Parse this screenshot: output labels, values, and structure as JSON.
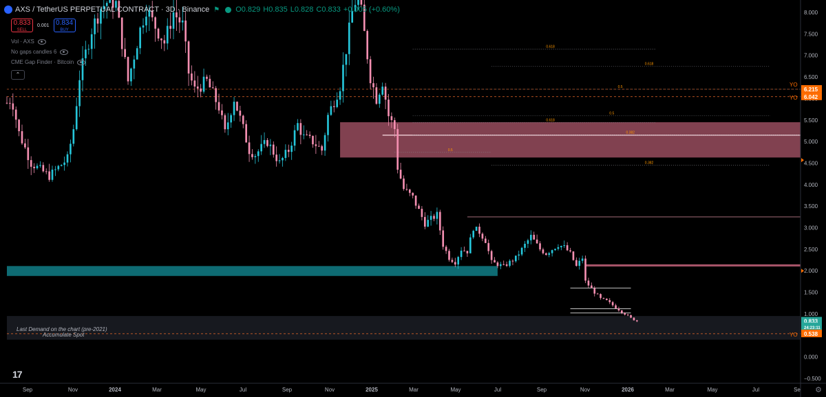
{
  "header": {
    "symbol": "AXS / TetherUS PERPETUAL CONTRACT · 3D · Binance",
    "open": "O0.829",
    "high": "H0.835",
    "low": "L0.828",
    "close": "C0.833",
    "change": "+0.005 (+0.60%)"
  },
  "trade": {
    "sell_price": "0.833",
    "sell_label": "SELL",
    "spread": "0.001",
    "buy_price": "0.834",
    "buy_label": "BUY"
  },
  "indicators": [
    "Vol · AXS",
    "No gaps candles 6",
    "CME Gap Finder · Bitcoin"
  ],
  "colors": {
    "background": "#000000",
    "up": "#26c6da",
    "down": "#f48fb1",
    "demand_zone": "#0e6b73",
    "supply_zone": "#b85c72",
    "price_tag": "#26a69a",
    "yo_tag": "#ff6d00",
    "fib": "#ff9800"
  },
  "chart_data": {
    "type": "candlestick",
    "ylim": [
      -0.5,
      8.0
    ],
    "y_ticks": [
      "8.000",
      "7.500",
      "7.000",
      "6.500",
      "6.000",
      "5.500",
      "5.000",
      "4.500",
      "4.000",
      "3.500",
      "3.000",
      "2.500",
      "2.000",
      "1.500",
      "1.000",
      "0.000",
      "−0.500"
    ],
    "x_ticks": [
      "Sep",
      "Nov",
      "2024",
      "Mar",
      "May",
      "Jul",
      "Sep",
      "Nov",
      "2025",
      "Mar",
      "May",
      "Jul",
      "Sep",
      "Nov",
      "2026",
      "Mar",
      "May",
      "Jul",
      "Se"
    ],
    "price_path": [
      [
        0,
        5.9
      ],
      [
        0.8,
        6.0
      ],
      [
        2,
        5.2
      ],
      [
        4,
        4.5
      ],
      [
        7,
        4.2
      ],
      [
        10,
        4.6
      ],
      [
        11,
        5.3
      ],
      [
        12,
        6.5
      ],
      [
        14,
        7.6
      ],
      [
        15.5,
        8.1
      ],
      [
        17,
        8.3
      ],
      [
        18,
        8.2
      ],
      [
        19,
        7.3
      ],
      [
        20,
        6.4
      ],
      [
        21,
        7.0
      ],
      [
        22,
        7.6
      ],
      [
        23,
        8.1
      ],
      [
        24,
        7.8
      ],
      [
        26,
        7.3
      ],
      [
        27.5,
        8.0
      ],
      [
        29,
        7.7
      ],
      [
        30,
        6.6
      ],
      [
        31,
        6.2
      ],
      [
        33,
        6.4
      ],
      [
        35,
        5.8
      ],
      [
        36,
        5.2
      ],
      [
        37.5,
        6.0
      ],
      [
        39,
        5.3
      ],
      [
        40,
        4.8
      ],
      [
        41,
        4.7
      ],
      [
        43,
        5.0
      ],
      [
        45,
        4.5
      ],
      [
        46.5,
        4.8
      ],
      [
        48,
        5.4
      ],
      [
        49,
        5.1
      ],
      [
        50.5,
        5.0
      ],
      [
        52,
        4.8
      ],
      [
        53,
        5.6
      ],
      [
        55,
        6.3
      ],
      [
        57,
        8.0
      ],
      [
        58,
        8.5
      ],
      [
        59,
        7.5
      ],
      [
        60,
        6.5
      ],
      [
        61,
        6.0
      ],
      [
        62,
        6.4
      ],
      [
        63,
        5.6
      ],
      [
        64,
        5.3
      ],
      [
        64.5,
        4.4
      ],
      [
        65.5,
        3.9
      ],
      [
        67,
        3.7
      ],
      [
        69,
        3.1
      ],
      [
        71,
        3.3
      ],
      [
        72,
        2.6
      ],
      [
        73,
        2.3
      ],
      [
        74,
        2.2
      ],
      [
        75,
        2.5
      ],
      [
        76,
        2.45
      ],
      [
        77,
        3.0
      ],
      [
        78,
        2.9
      ],
      [
        79,
        2.7
      ],
      [
        80,
        2.2
      ],
      [
        82,
        2.1
      ],
      [
        84,
        2.3
      ],
      [
        85.5,
        2.6
      ],
      [
        86.5,
        2.8
      ],
      [
        88,
        2.5
      ],
      [
        89,
        2.4
      ],
      [
        91,
        2.6
      ],
      [
        92,
        2.55
      ],
      [
        93,
        2.4
      ],
      [
        94,
        2.1
      ],
      [
        95,
        2.3
      ],
      [
        95.5,
        1.75
      ],
      [
        97,
        1.5
      ],
      [
        98,
        1.35
      ],
      [
        99,
        1.3
      ],
      [
        100,
        1.2
      ],
      [
        101,
        1.1
      ],
      [
        102,
        1.0
      ],
      [
        103,
        0.9
      ],
      [
        104,
        0.833
      ]
    ],
    "zones": [
      {
        "name": "demand",
        "from": 0,
        "to": 81,
        "low": 1.88,
        "high": 2.11
      },
      {
        "name": "supply",
        "from": 55,
        "to": 131,
        "low": 4.63,
        "high": 5.45
      },
      {
        "name": "resistance",
        "from": 95.5,
        "to": 131,
        "low": 2.1,
        "high": 2.15
      },
      {
        "name": "accumulation",
        "from": 0,
        "to": 131,
        "low": 0.4,
        "high": 0.95
      }
    ],
    "levels": [
      {
        "price": 3.25,
        "from": 76,
        "to": 131
      },
      {
        "price": 1.6,
        "from": 93,
        "to": 103
      },
      {
        "price": 1.12,
        "from": 93,
        "to": 103
      },
      {
        "price": 1.02,
        "from": 93,
        "to": 103
      }
    ],
    "fib_levels": [
      {
        "label": "0.618",
        "price": 7.15,
        "from": 67,
        "to": 107
      },
      {
        "label": "0.618",
        "price": 6.75,
        "from": 80,
        "to": 126
      },
      {
        "label": "0.5",
        "price": 6.215,
        "from": 64,
        "to": 131
      },
      {
        "label": "0.5",
        "price": 5.6,
        "from": 67,
        "to": 126
      },
      {
        "label": "0.618",
        "price": 5.44,
        "from": 67,
        "to": 107
      },
      {
        "label": "0.382",
        "price": 5.15,
        "from": 67,
        "to": 131
      },
      {
        "label": "0.5",
        "price": 4.75,
        "from": 64,
        "to": 80
      },
      {
        "label": "0.382",
        "price": 4.45,
        "from": 80,
        "to": 126
      }
    ],
    "yo_levels": [
      {
        "label": "YO",
        "price": 6.215
      },
      {
        "label": "YO",
        "price": 6.042
      },
      {
        "label": "YO",
        "price": 0.538
      }
    ],
    "price_tags": [
      {
        "value": "6.215",
        "kind": "yo"
      },
      {
        "value": "6.042",
        "kind": "yo"
      },
      {
        "value": "0.833",
        "kind": "last"
      },
      {
        "value": "24:23:11",
        "kind": "countdown"
      },
      {
        "value": "0.538",
        "kind": "yo"
      }
    ],
    "annotations": [
      "Last Demand on the chart (pre-2021)",
      "Accumulate Spot"
    ],
    "grid": false
  }
}
